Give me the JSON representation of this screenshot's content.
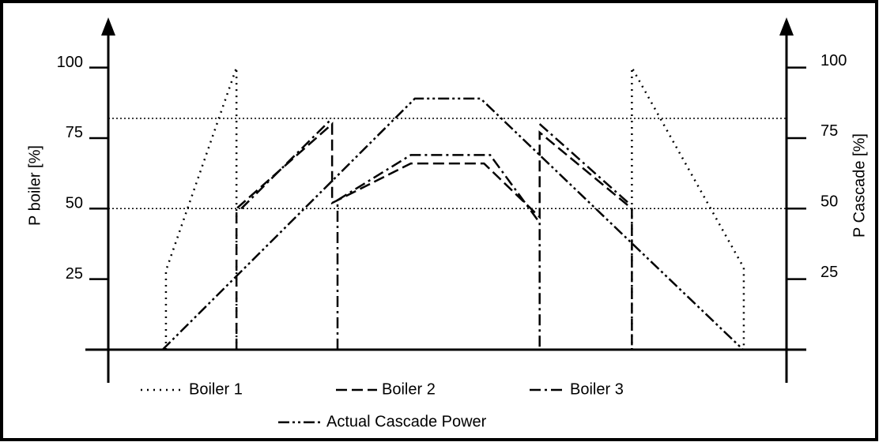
{
  "chart_data": {
    "type": "line",
    "ylabel": "P boiler [%]",
    "y2label": "P Cascade [%]",
    "xlim": [
      0,
      100
    ],
    "ylim": [
      0,
      115
    ],
    "yticks": [
      25,
      50,
      75,
      100
    ],
    "y2lim": [
      0,
      115
    ],
    "y2ticks": [
      25,
      50,
      75,
      100
    ],
    "hlines": [
      82,
      50
    ],
    "legend": "bottom",
    "series": [
      {
        "name": "Boiler 1",
        "color": "#000000",
        "dash": "dotted",
        "x": [
          8.5,
          8.5,
          18.9,
          18.9,
          null,
          77.2,
          77.2,
          93.7,
          93.7
        ],
        "values": [
          0,
          28,
          100,
          0,
          null,
          0,
          100,
          29,
          0
        ]
      },
      {
        "name": "Boiler 2",
        "color": "#000000",
        "dash": "dashed",
        "x": [
          18.9,
          18.9,
          33,
          33,
          44.6,
          55.4,
          63.6,
          63.6,
          77.2,
          77.2
        ],
        "values": [
          0,
          50,
          80,
          52,
          66,
          66,
          47,
          77,
          50,
          0
        ]
      },
      {
        "name": "Boiler 3",
        "color": "#000000",
        "dash": "dashdot",
        "x": [
          19.6,
          33,
          null,
          33.8,
          33.8,
          44.6,
          56.3,
          63.6,
          63.6,
          null,
          63.6,
          76.7
        ],
        "values": [
          50,
          82,
          null,
          0,
          53,
          69,
          69,
          45,
          0,
          null,
          80,
          52
        ]
      },
      {
        "name": "Actual Cascade Power",
        "color": "#000000",
        "dash": "dashdotdot",
        "x": [
          8,
          45.2,
          54.9,
          93.6
        ],
        "values": [
          0,
          89,
          89,
          0
        ]
      }
    ]
  }
}
